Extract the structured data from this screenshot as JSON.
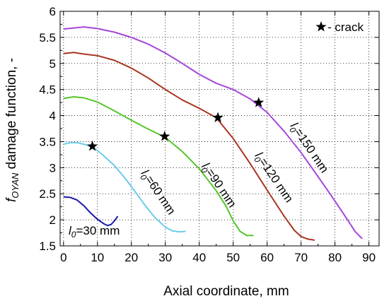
{
  "chart_data": {
    "type": "line",
    "xlabel": "Axial coordinate, mm",
    "ylabel": {
      "prefix": "f",
      "subscript": "OYAN",
      "rest": " damage function, -"
    },
    "xlim": [
      -1,
      93
    ],
    "ylim": [
      1.5,
      6.0
    ],
    "x_ticks": [
      0,
      10,
      20,
      30,
      40,
      50,
      60,
      70,
      80,
      90
    ],
    "y_ticks": [
      1.5,
      2,
      2.5,
      3,
      3.5,
      4,
      4.5,
      5,
      5.5,
      6
    ],
    "y_tick_labels": [
      "1.5",
      "2",
      "2.5",
      "3",
      "3.5",
      "4",
      "4.5",
      "5",
      "5.5",
      "6"
    ],
    "legend": {
      "text": "- crack",
      "placement": "top-right"
    },
    "series": [
      {
        "name": "l0=30 mm",
        "label": {
          "prefix": "l",
          "subscript": "0",
          "rest": "=30 mm"
        },
        "color": "#1a1aa8",
        "points": [
          [
            0,
            2.44
          ],
          [
            2,
            2.43
          ],
          [
            4,
            2.38
          ],
          [
            6,
            2.27
          ],
          [
            8,
            2.13
          ],
          [
            10,
            2.01
          ],
          [
            12,
            1.92
          ],
          [
            13,
            1.89
          ],
          [
            14,
            1.91
          ],
          [
            15,
            1.98
          ],
          [
            16,
            2.07
          ]
        ],
        "crack": null
      },
      {
        "name": "l0=60 mm",
        "label": {
          "prefix": "l",
          "subscript": "0",
          "rest": "=60 mm"
        },
        "color": "#6ccbe8",
        "points": [
          [
            0,
            3.45
          ],
          [
            2,
            3.48
          ],
          [
            4,
            3.48
          ],
          [
            6,
            3.45
          ],
          [
            8,
            3.41
          ],
          [
            10,
            3.33
          ],
          [
            12,
            3.22
          ],
          [
            15,
            3.04
          ],
          [
            18,
            2.81
          ],
          [
            21,
            2.55
          ],
          [
            24,
            2.28
          ],
          [
            27,
            2.04
          ],
          [
            30,
            1.86
          ],
          [
            32,
            1.79
          ],
          [
            34,
            1.77
          ],
          [
            36,
            1.78
          ]
        ],
        "crack": [
          8.5,
          3.41
        ]
      },
      {
        "name": "l0=90 mm",
        "label": {
          "prefix": "l",
          "subscript": "0",
          "rest": "=90 mm"
        },
        "color": "#55c629",
        "points": [
          [
            0,
            4.33
          ],
          [
            3,
            4.36
          ],
          [
            6,
            4.34
          ],
          [
            10,
            4.26
          ],
          [
            15,
            4.09
          ],
          [
            20,
            3.91
          ],
          [
            25,
            3.74
          ],
          [
            30,
            3.58
          ],
          [
            35,
            3.31
          ],
          [
            40,
            2.98
          ],
          [
            45,
            2.56
          ],
          [
            48,
            2.25
          ],
          [
            50,
            1.98
          ],
          [
            52,
            1.78
          ],
          [
            54,
            1.7
          ],
          [
            56,
            1.7
          ]
        ],
        "crack": [
          29.8,
          3.6
        ]
      },
      {
        "name": "l0=120 mm",
        "label": {
          "prefix": "l",
          "subscript": "0",
          "rest": "=120 mm"
        },
        "color": "#a93520",
        "points": [
          [
            0,
            5.19
          ],
          [
            3,
            5.21
          ],
          [
            6,
            5.18
          ],
          [
            10,
            5.15
          ],
          [
            15,
            5.06
          ],
          [
            20,
            4.91
          ],
          [
            25,
            4.72
          ],
          [
            30,
            4.5
          ],
          [
            35,
            4.3
          ],
          [
            40,
            4.14
          ],
          [
            45,
            3.96
          ],
          [
            50,
            3.56
          ],
          [
            55,
            3.08
          ],
          [
            60,
            2.57
          ],
          [
            65,
            2.07
          ],
          [
            68,
            1.8
          ],
          [
            70,
            1.68
          ],
          [
            72,
            1.63
          ],
          [
            74,
            1.61
          ]
        ],
        "crack": [
          45.5,
          3.96
        ]
      },
      {
        "name": "l0=150 mm",
        "label": {
          "prefix": "l",
          "subscript": "0",
          "rest": "=150 mm"
        },
        "color": "#a347db",
        "points": [
          [
            0,
            5.66
          ],
          [
            3,
            5.68
          ],
          [
            6,
            5.7
          ],
          [
            10,
            5.67
          ],
          [
            15,
            5.6
          ],
          [
            20,
            5.5
          ],
          [
            25,
            5.37
          ],
          [
            30,
            5.2
          ],
          [
            35,
            5.0
          ],
          [
            40,
            4.79
          ],
          [
            45,
            4.62
          ],
          [
            50,
            4.5
          ],
          [
            55,
            4.32
          ],
          [
            60,
            4.06
          ],
          [
            65,
            3.7
          ],
          [
            70,
            3.29
          ],
          [
            75,
            2.83
          ],
          [
            80,
            2.36
          ],
          [
            84,
            1.97
          ],
          [
            86,
            1.77
          ],
          [
            88,
            1.64
          ]
        ],
        "crack": [
          57.5,
          4.25
        ]
      }
    ]
  }
}
